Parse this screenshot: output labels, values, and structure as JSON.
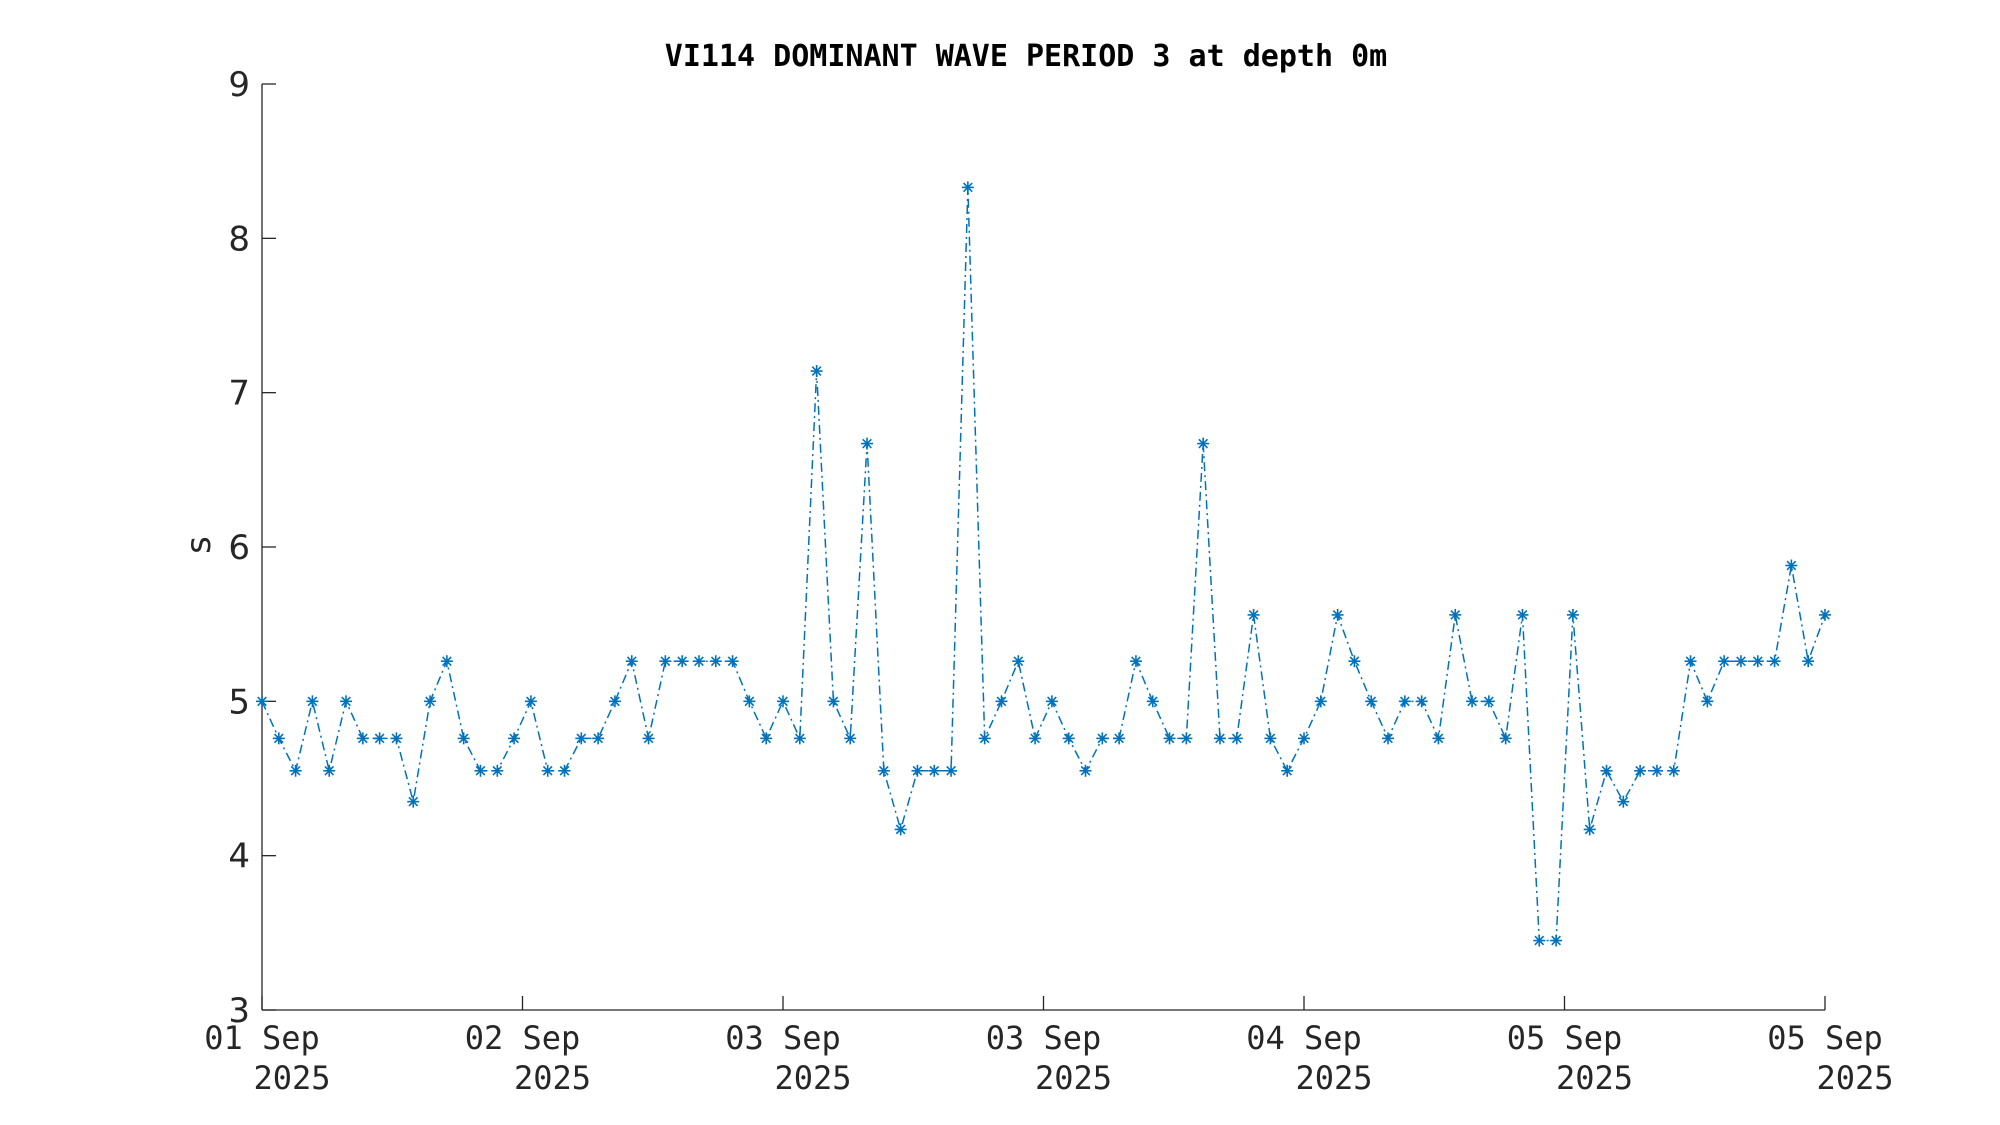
{
  "chart_data": {
    "type": "line",
    "title": "VI114 DOMINANT WAVE PERIOD 3 at depth 0m",
    "xlabel": "",
    "ylabel": "s",
    "ylim": [
      3,
      9
    ],
    "yticks": [
      3,
      4,
      5,
      6,
      7,
      8,
      9
    ],
    "xticks": [
      {
        "line1": "01 Sep",
        "line2": "2025"
      },
      {
        "line1": "02 Sep",
        "line2": "2025"
      },
      {
        "line1": "03 Sep",
        "line2": "2025"
      },
      {
        "line1": "03 Sep",
        "line2": "2025"
      },
      {
        "line1": "04 Sep",
        "line2": "2025"
      },
      {
        "line1": "05 Sep",
        "line2": "2025"
      },
      {
        "line1": "05 Sep",
        "line2": "2025"
      }
    ],
    "grid": false,
    "color": "#0072BD",
    "marker": "asterisk",
    "line_style": "dash-dot",
    "series": [
      {
        "values": [
          5.0,
          4.76,
          4.55,
          5.0,
          4.55,
          5.0,
          4.76,
          4.76,
          4.76,
          4.35,
          5.0,
          5.26,
          4.76,
          4.55,
          4.55,
          4.76,
          5.0,
          4.55,
          4.55,
          4.76,
          4.76,
          5.0,
          5.26,
          4.76,
          5.26,
          5.26,
          5.26,
          5.26,
          5.26,
          5.0,
          4.76,
          5.0,
          4.76,
          7.14,
          5.0,
          4.76,
          6.67,
          4.55,
          4.17,
          4.55,
          4.55,
          4.55,
          8.33,
          4.76,
          5.0,
          5.26,
          4.76,
          5.0,
          4.76,
          4.55,
          4.76,
          4.76,
          5.26,
          5.0,
          4.76,
          4.76,
          6.67,
          4.76,
          4.76,
          5.56,
          4.76,
          4.55,
          4.76,
          5.0,
          5.56,
          5.26,
          5.0,
          4.76,
          5.0,
          5.0,
          4.76,
          5.56,
          5.0,
          5.0,
          4.76,
          5.56,
          3.45,
          3.45,
          5.56,
          4.17,
          4.55,
          4.35,
          4.55,
          4.55,
          4.55,
          5.26,
          5.0,
          5.26,
          5.26,
          5.26,
          5.26,
          5.88,
          5.26,
          5.56
        ]
      }
    ]
  }
}
